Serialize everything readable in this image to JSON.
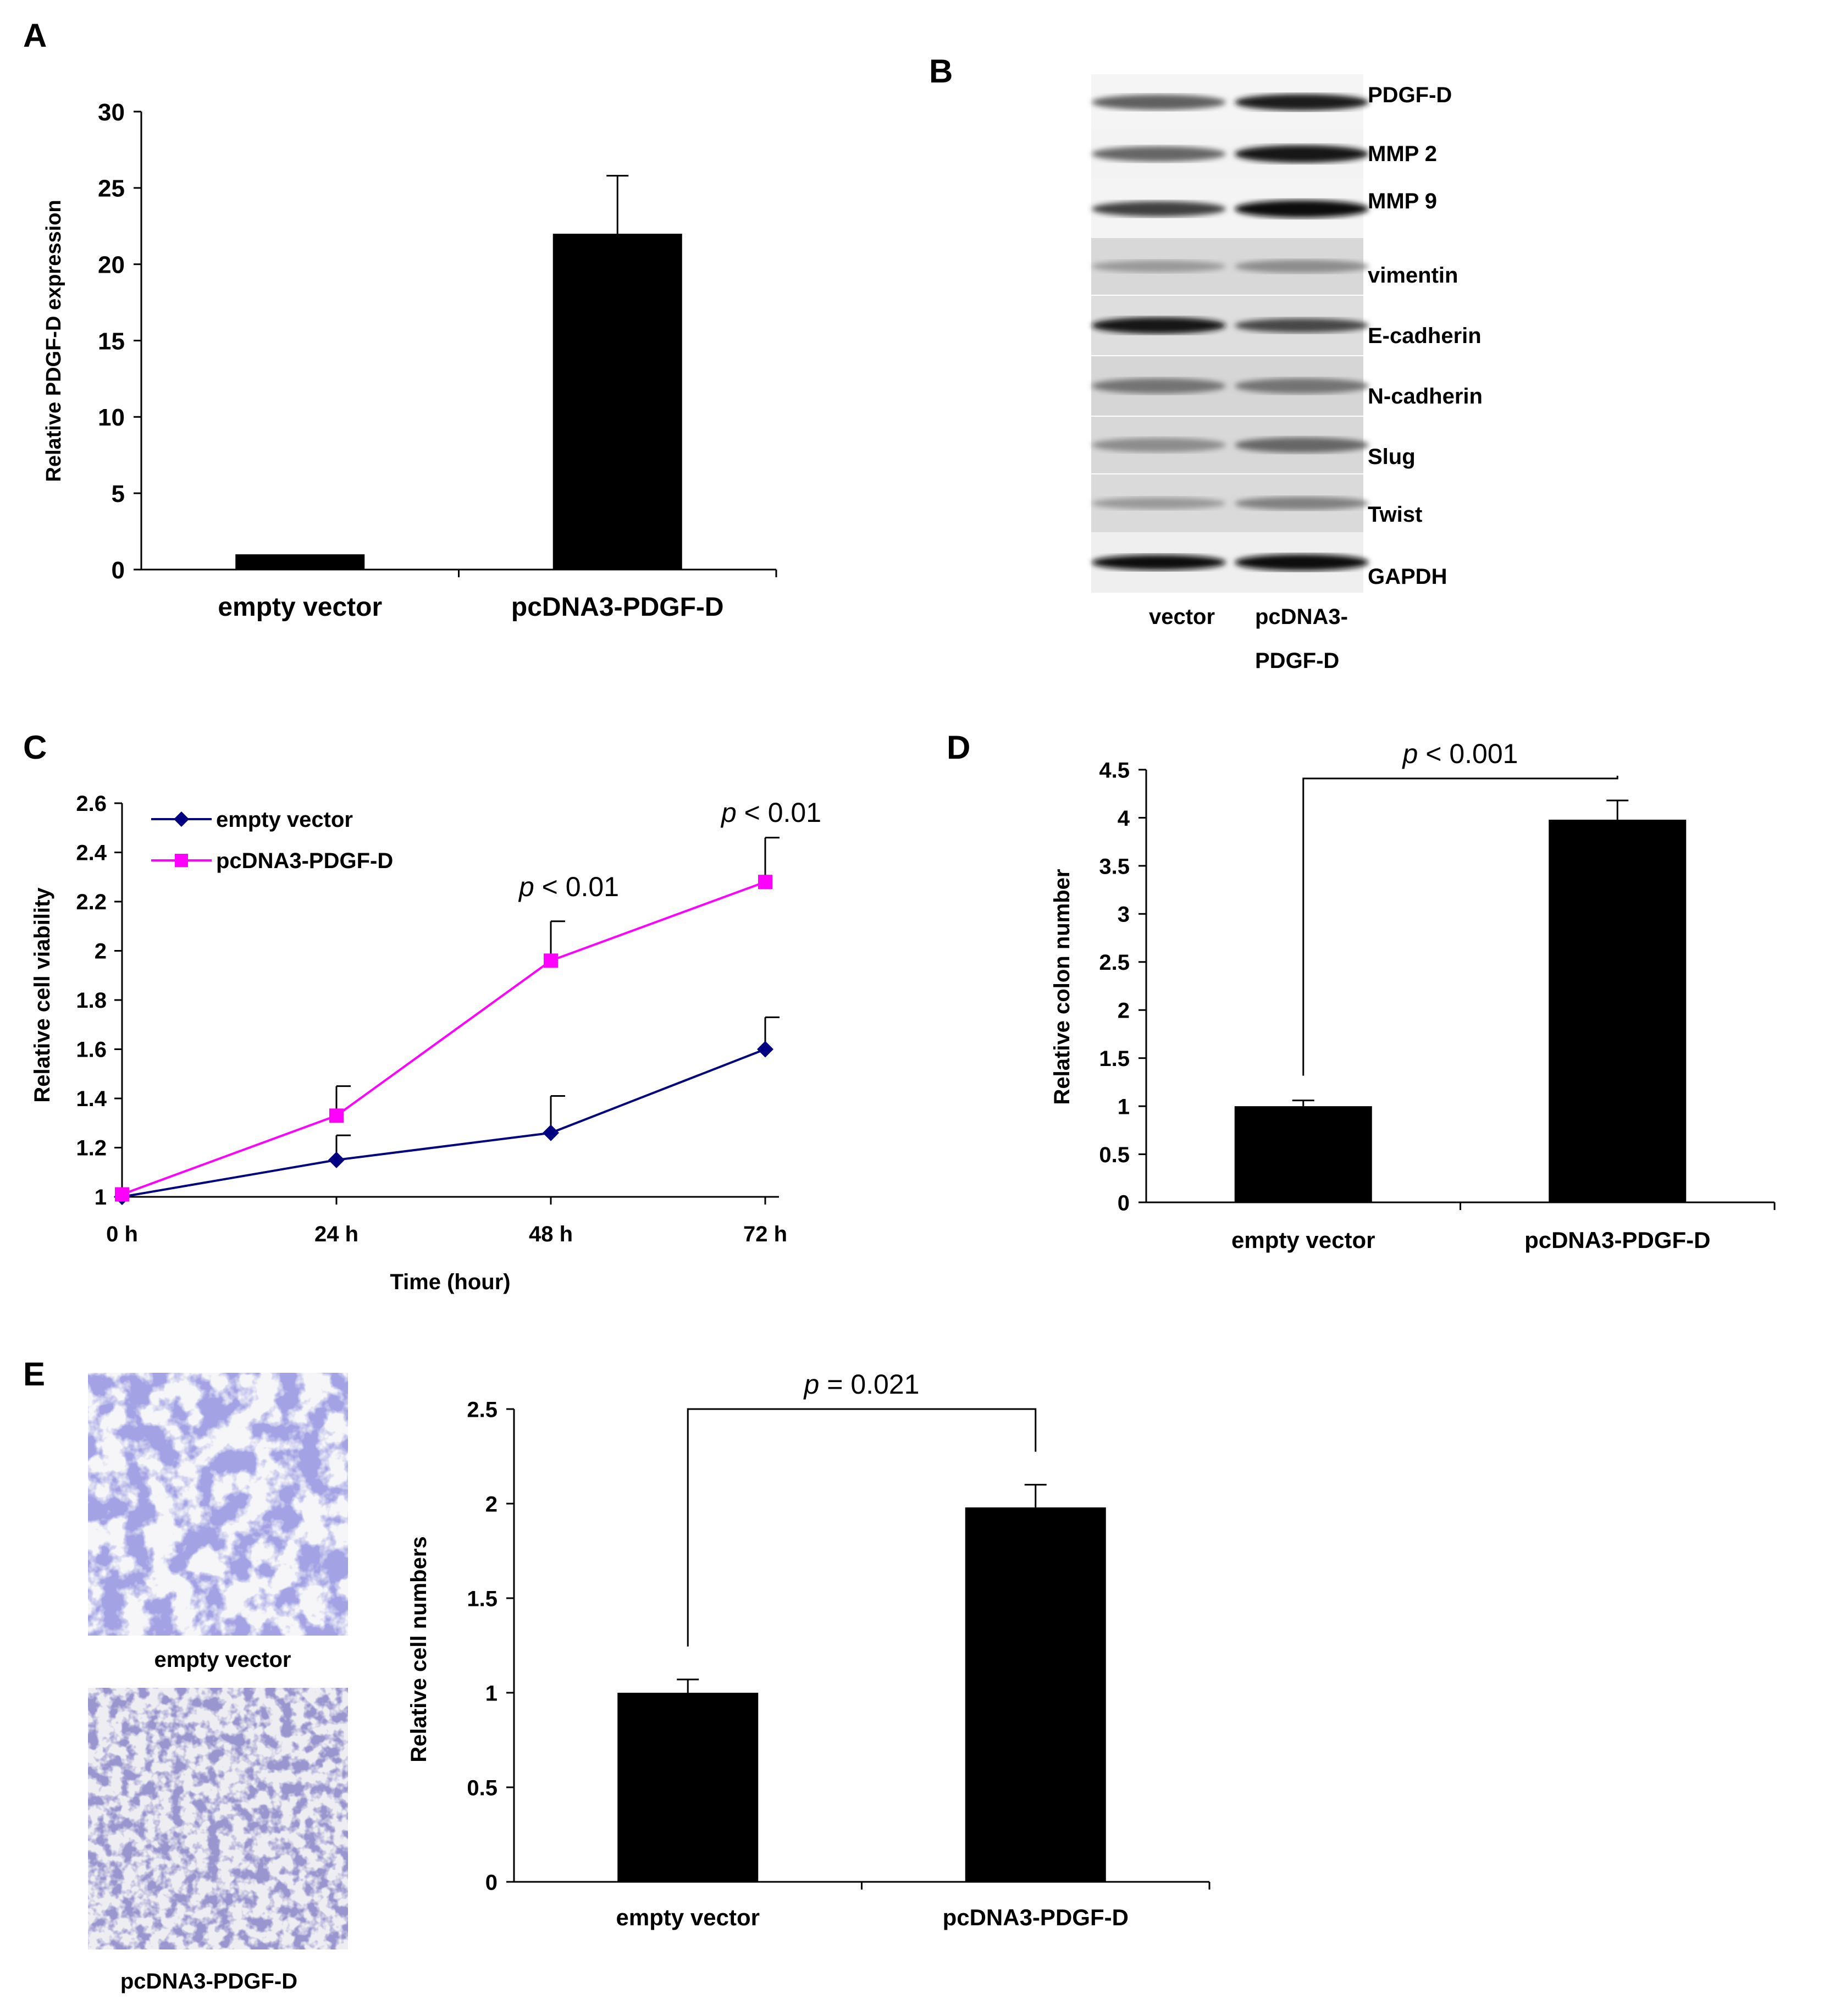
{
  "panels": {
    "A": "A",
    "B": "B",
    "C": "C",
    "D": "D",
    "E": "E"
  },
  "chart_data": [
    {
      "panel": "A",
      "type": "bar",
      "title": "",
      "xlabel": "",
      "ylabel": "Relative PDGF-D expression",
      "categories": [
        "empty vector",
        "pcDNA3-PDGF-D"
      ],
      "values": [
        1,
        22
      ],
      "errors": [
        0,
        3.8
      ],
      "ylim": [
        0,
        30
      ],
      "yticks": [
        0,
        5,
        10,
        15,
        20,
        25,
        30
      ],
      "ytick_labels": [
        "0",
        "5",
        "10",
        "15",
        "20",
        "25",
        "30"
      ],
      "grid": false,
      "bar_color": "#000000"
    },
    {
      "panel": "C",
      "type": "line",
      "title": "",
      "xlabel": "Time (hour)",
      "ylabel": "Relative cell viability",
      "categories": [
        "0 h",
        "24 h",
        "48 h",
        "72 h"
      ],
      "series": [
        {
          "name": "empty vector",
          "color": "#000080",
          "marker": "diamond",
          "values": [
            1.0,
            1.15,
            1.26,
            1.6
          ],
          "errors": [
            0,
            0.1,
            0.15,
            0.13
          ]
        },
        {
          "name": "pcDNA3-PDGF-D",
          "color": "#ff00ff",
          "marker": "square",
          "values": [
            1.01,
            1.33,
            1.96,
            2.28
          ],
          "errors": [
            0,
            0.12,
            0.16,
            0.18
          ]
        }
      ],
      "ylim": [
        1,
        2.6
      ],
      "yticks": [
        1,
        1.2,
        1.4,
        1.6,
        1.8,
        2,
        2.2,
        2.4,
        2.6
      ],
      "ytick_labels": [
        "1",
        "1.2",
        "1.4",
        "1.6",
        "1.8",
        "2",
        "2.2",
        "2.4",
        "2.6"
      ],
      "legend_position": "top-left",
      "annotations": [
        {
          "x": "48 h",
          "italic": "p",
          "rest": " < 0.01"
        },
        {
          "x": "72 h",
          "italic": "p",
          "rest": " < 0.01"
        }
      ]
    },
    {
      "panel": "D",
      "type": "bar",
      "title": "",
      "xlabel": "",
      "ylabel": "Relative colon number",
      "categories": [
        "empty vector",
        "pcDNA3-PDGF-D"
      ],
      "values": [
        1,
        3.98
      ],
      "errors": [
        0.06,
        0.2
      ],
      "ylim": [
        0,
        4.5
      ],
      "yticks": [
        0,
        0.5,
        1,
        1.5,
        2,
        2.5,
        3,
        3.5,
        4,
        4.5
      ],
      "ytick_labels": [
        "0",
        "0.5",
        "1",
        "1.5",
        "2",
        "2.5",
        "3",
        "3.5",
        "4",
        "4.5"
      ],
      "significance": {
        "italic": "p",
        "rest": " < 0.001"
      }
    },
    {
      "panel": "E",
      "type": "bar",
      "title": "",
      "xlabel": "",
      "ylabel": "Relative cell numbers",
      "categories": [
        "empty vector",
        "pcDNA3-PDGF-D"
      ],
      "values": [
        1,
        1.98
      ],
      "errors": [
        0.07,
        0.12
      ],
      "ylim": [
        0,
        2.5
      ],
      "yticks": [
        0,
        0.5,
        1,
        1.5,
        2,
        2.5
      ],
      "ytick_labels": [
        "0",
        "0.5",
        "1",
        "1.5",
        "2",
        "2.5"
      ],
      "significance": {
        "italic": "p",
        "rest": " = 0.021"
      }
    }
  ],
  "western_blot": {
    "proteins": [
      "PDGF-D",
      "MMP 2",
      "MMP 9",
      "vimentin",
      "E-cadherin",
      "N-cadherin",
      "Slug",
      "Twist",
      "GAPDH"
    ],
    "lane_labels": [
      "vector",
      "pcDNA3-",
      "PDGF-D"
    ]
  },
  "micrographs": {
    "labels": [
      "empty vector",
      "pcDNA3-PDGF-D"
    ]
  }
}
